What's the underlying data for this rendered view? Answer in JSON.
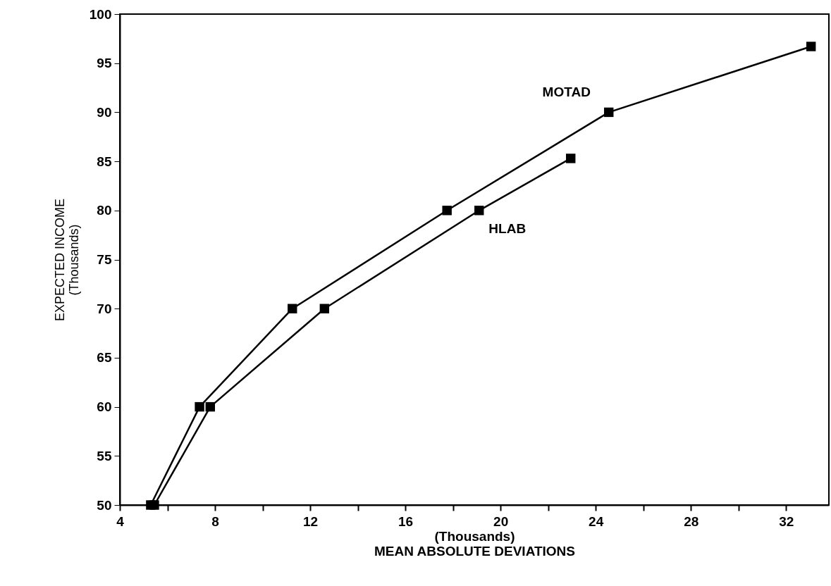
{
  "chart_data": {
    "type": "line",
    "xlabel": "(Thousands)\nMEAN ABSOLUTE DEVIATIONS",
    "ylabel": "EXPECTED INCOME\n(Thousands)",
    "xlim": [
      4,
      33.8
    ],
    "xticks": [
      4,
      {
        "value": 6,
        "label": null
      },
      8,
      {
        "value": 10,
        "label": null
      },
      12,
      {
        "value": 14,
        "label": null
      },
      16,
      {
        "value": 18,
        "label": null
      },
      20,
      {
        "value": 22,
        "label": null
      },
      24,
      {
        "value": 26,
        "label": null
      },
      28,
      {
        "value": 30,
        "label": null
      },
      32
    ],
    "ylim": [
      50,
      100
    ],
    "yticks": [
      50,
      55,
      60,
      65,
      70,
      75,
      80,
      85,
      90,
      95,
      100
    ],
    "marker": "square",
    "line_style": "solid",
    "grid": false,
    "series": [
      {
        "name": "MOTAD",
        "color": "#000000",
        "x": [
          5.3,
          7.35,
          11.25,
          17.75,
          24.55,
          33.05
        ],
        "values": [
          50,
          60,
          70,
          80,
          90,
          96.7
        ]
      },
      {
        "name": "HLAB",
        "color": "#000000",
        "x": [
          5.45,
          7.8,
          12.6,
          19.1,
          22.95
        ],
        "values": [
          50,
          60,
          70,
          80,
          85.3
        ]
      }
    ]
  }
}
